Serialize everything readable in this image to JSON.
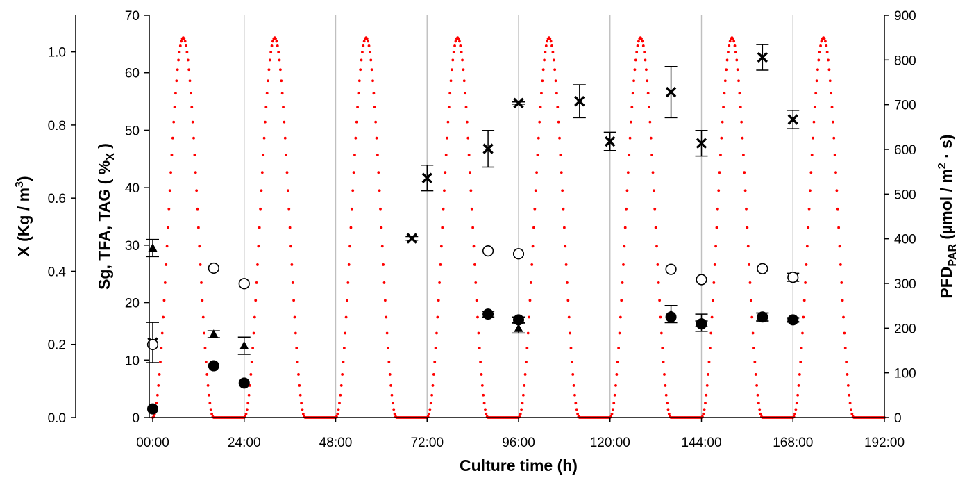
{
  "chart_data": {
    "type": "scatter",
    "xlabel": "Culture time (h)",
    "x_tick_labels": [
      "00:00",
      "24:00",
      "48:00",
      "72:00",
      "96:00",
      "120:00",
      "144:00",
      "168:00",
      "192:00"
    ],
    "xlim": [
      0,
      192
    ],
    "grid": "vertical lines every 24 h",
    "axes": {
      "left_outer": {
        "label": "X (Kg / m",
        "label_sup": "3",
        "label_end": ")",
        "ylim": [
          0,
          1.1
        ],
        "ticks": [
          0.0,
          0.2,
          0.4,
          0.6,
          0.8,
          1.0
        ],
        "tick_labels": [
          "0.0",
          "0.2",
          "0.4",
          "0.6",
          "0.8",
          "1.0"
        ]
      },
      "left_inner": {
        "label": "Sg, TFA, TAG ( %",
        "label_sub": "X",
        "label_end": " )",
        "ylim": [
          0,
          70
        ],
        "ticks": [
          0,
          10,
          20,
          30,
          40,
          50,
          60,
          70
        ],
        "tick_labels": [
          "0",
          "10",
          "20",
          "30",
          "40",
          "50",
          "60",
          "70"
        ]
      },
      "right": {
        "label": "PFD",
        "label_sub": "PAR",
        "label_mid": " (µmol / m",
        "label_sup": "2",
        "label_end": " · s)",
        "ylim": [
          0,
          900
        ],
        "ticks": [
          0,
          100,
          200,
          300,
          400,
          500,
          600,
          700,
          800,
          900
        ],
        "tick_labels": [
          "0",
          "100",
          "200",
          "300",
          "400",
          "500",
          "600",
          "700",
          "800",
          "900"
        ]
      }
    },
    "series": [
      {
        "marker": "x-cross",
        "axis": "left_outer",
        "color": "#000000",
        "points": [
          {
            "x": 0,
            "y": 0.205,
            "err": 0.055
          },
          {
            "x": 68,
            "y": 0.49,
            "err": 0.005
          },
          {
            "x": 72,
            "y": 0.655,
            "err": 0.035
          },
          {
            "x": 88,
            "y": 0.735,
            "err": 0.05
          },
          {
            "x": 96,
            "y": 0.86,
            "err": 0.003
          },
          {
            "x": 112,
            "y": 0.865,
            "err": 0.045
          },
          {
            "x": 120,
            "y": 0.755,
            "err": 0.025
          },
          {
            "x": 136,
            "y": 0.89,
            "err": 0.07
          },
          {
            "x": 144,
            "y": 0.75,
            "err": 0.035
          },
          {
            "x": 160,
            "y": 0.985,
            "err": 0.035
          },
          {
            "x": 168,
            "y": 0.815,
            "err": 0.025
          }
        ]
      },
      {
        "marker": "circle-open",
        "axis": "left_inner",
        "color": "#000000",
        "points": [
          {
            "x": 0,
            "y": 12.7,
            "err": 0
          },
          {
            "x": 16,
            "y": 26.0,
            "err": 0
          },
          {
            "x": 24,
            "y": 23.3,
            "err": 0
          },
          {
            "x": 88,
            "y": 29.0,
            "err": 0
          },
          {
            "x": 96,
            "y": 28.5,
            "err": 0
          },
          {
            "x": 136,
            "y": 25.8,
            "err": 0
          },
          {
            "x": 144,
            "y": 24.0,
            "err": 0
          },
          {
            "x": 160,
            "y": 25.9,
            "err": 0
          },
          {
            "x": 168,
            "y": 24.4,
            "err": 0.7
          }
        ]
      },
      {
        "marker": "triangle",
        "axis": "left_inner",
        "color": "#000000",
        "points": [
          {
            "x": 0,
            "y": 29.5,
            "err": 1.5
          },
          {
            "x": 16,
            "y": 14.5,
            "err": 0.6
          },
          {
            "x": 24,
            "y": 12.5,
            "err": 1.5
          },
          {
            "x": 88,
            "y": 18.0,
            "err": 0.5
          },
          {
            "x": 96,
            "y": 15.5,
            "err": 0.8
          },
          {
            "x": 136,
            "y": 18.0,
            "err": 1.5
          },
          {
            "x": 144,
            "y": 16.5,
            "err": 1.5
          },
          {
            "x": 160,
            "y": 17.5,
            "err": 0.7
          },
          {
            "x": 168,
            "y": 17.0,
            "err": 0.4
          }
        ]
      },
      {
        "marker": "circle-filled",
        "axis": "left_inner",
        "color": "#000000",
        "points": [
          {
            "x": 0,
            "y": 1.5,
            "err": 0
          },
          {
            "x": 16,
            "y": 9.0,
            "err": 0
          },
          {
            "x": 24,
            "y": 6.0,
            "err": 0
          },
          {
            "x": 88,
            "y": 18.0,
            "err": 0.5
          },
          {
            "x": 96,
            "y": 17.0,
            "err": 0.5
          },
          {
            "x": 136,
            "y": 17.5,
            "err": 0
          },
          {
            "x": 144,
            "y": 16.3,
            "err": 0.5
          },
          {
            "x": 160,
            "y": 17.5,
            "err": 0.7
          },
          {
            "x": 168,
            "y": 17.0,
            "err": 0.3
          }
        ]
      },
      {
        "marker": "dotted-line",
        "axis": "right",
        "color": "#ff0000",
        "curve": {
          "period_h": 24,
          "light_start_h": 0,
          "light_end_h": 16,
          "peak": 850,
          "shape": "sin^2",
          "step_h": 0.25
        }
      }
    ]
  }
}
